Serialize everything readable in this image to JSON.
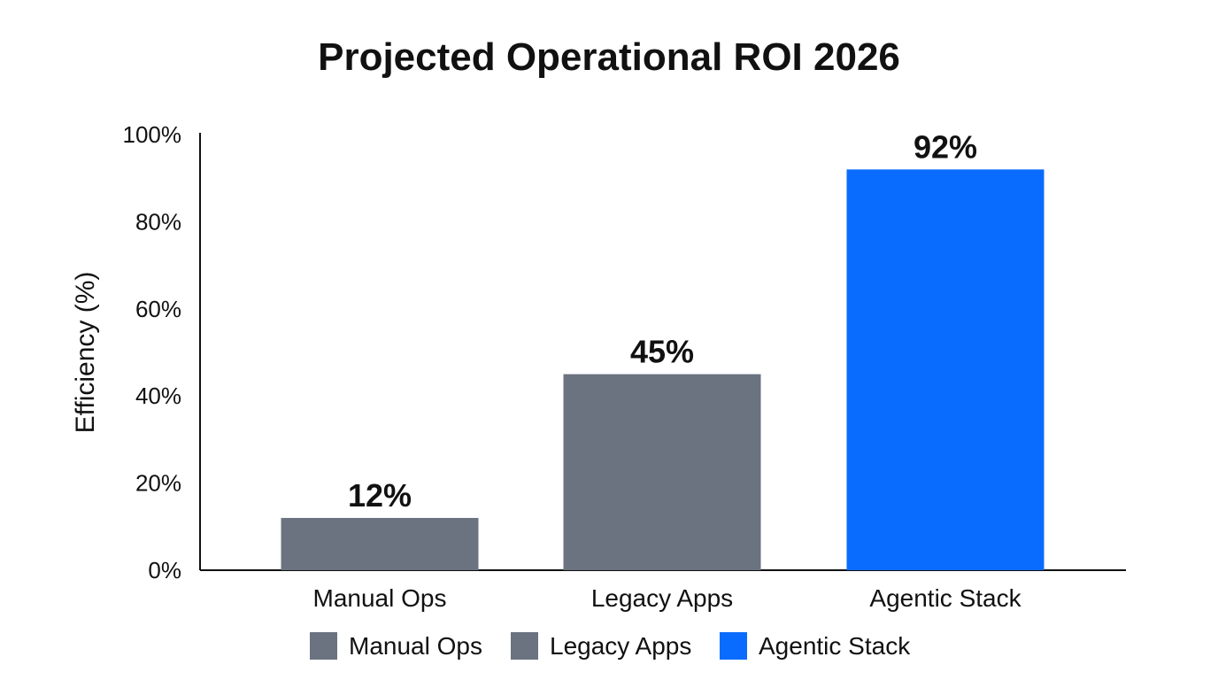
{
  "chart_data": {
    "type": "bar",
    "title": "Projected Operational ROI 2026",
    "xlabel": "",
    "ylabel": "Efficiency (%)",
    "categories": [
      "Manual Ops",
      "Legacy Apps",
      "Agentic Stack"
    ],
    "values": [
      12,
      45,
      92
    ],
    "data_labels": [
      "12%",
      "45%",
      "92%"
    ],
    "colors": [
      "#6b7280",
      "#6b7280",
      "#0a6cff"
    ],
    "ylim": [
      0,
      100
    ],
    "yticks": [
      0,
      20,
      40,
      60,
      80,
      100
    ],
    "ytick_labels": [
      "0%",
      "20%",
      "40%",
      "60%",
      "80%",
      "100%"
    ],
    "grid": false,
    "legend": {
      "placement": "bottom",
      "entries": [
        "Manual Ops",
        "Legacy Apps",
        "Agentic Stack"
      ]
    }
  }
}
